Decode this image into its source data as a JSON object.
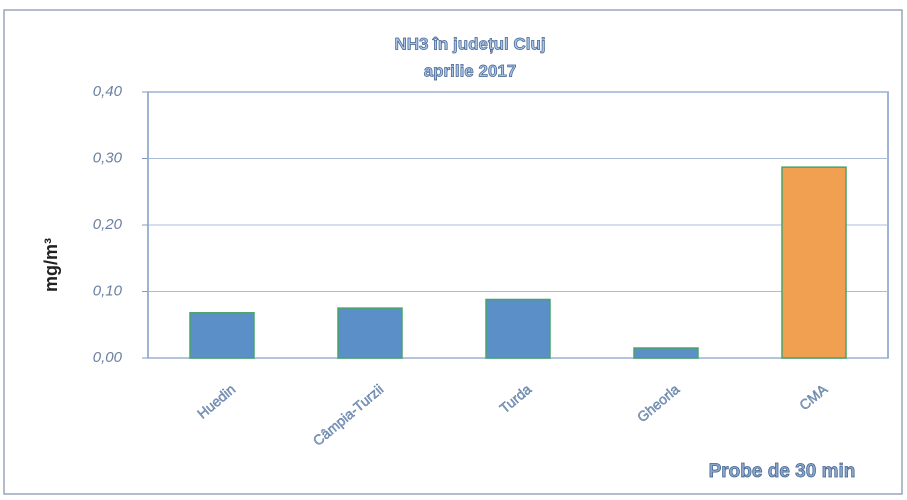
{
  "chart_data": {
    "type": "bar",
    "title": "NH3 în județul Cluj",
    "subtitle": "aprilie 2017",
    "y_label": "mg/m³",
    "annotation": "Probe de 30 min",
    "categories": [
      "Huedin",
      "Câmpia-Turzii",
      "Turda",
      "Gheorla",
      "CMA"
    ],
    "values": [
      0.068,
      0.075,
      0.088,
      0.015,
      0.287
    ],
    "colors": [
      "#5b8fc7",
      "#5b8fc7",
      "#5b8fc7",
      "#5b8fc7",
      "#f0a050"
    ],
    "ylim": [
      0,
      0.4
    ],
    "yticks": [
      {
        "value": 0,
        "label": "0,00"
      },
      {
        "value": 0.1,
        "label": "0,10"
      },
      {
        "value": 0.2,
        "label": "0,20"
      },
      {
        "value": 0.3,
        "label": "0,30"
      },
      {
        "value": 0.4,
        "label": "0,40"
      }
    ],
    "grid": true
  }
}
